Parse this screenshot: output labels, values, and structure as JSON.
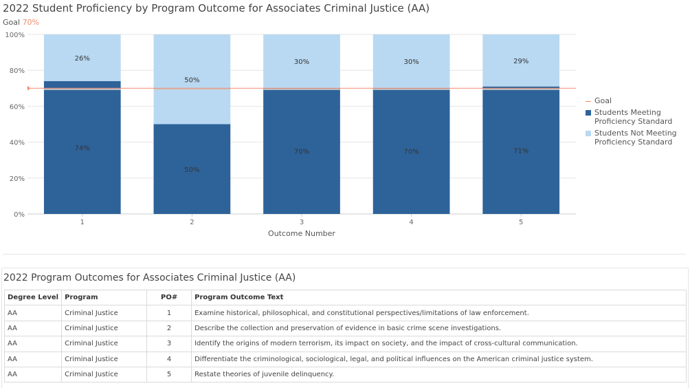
{
  "chart_title": "2022 Student Proficiency by Program Outcome for Associates Criminal Justice (AA)",
  "goal_label": {
    "label": "Goal",
    "value": "70%"
  },
  "chart_data": {
    "type": "bar",
    "stacked": true,
    "categories": [
      "1",
      "2",
      "3",
      "4",
      "5"
    ],
    "xlabel": "Outcome Number",
    "ylim": [
      0,
      100
    ],
    "yticks": [
      "0%",
      "20%",
      "40%",
      "60%",
      "80%",
      "100%"
    ],
    "goal": 70,
    "series": [
      {
        "name": "Students Meeting Proficiency Standard",
        "values": [
          74,
          50,
          70,
          70,
          71
        ],
        "labels": [
          "74%",
          "50%",
          "70%",
          "70%",
          "71%"
        ],
        "color": "#2e6399"
      },
      {
        "name": "Students Not Meeting Proficiency Standard",
        "values": [
          26,
          50,
          30,
          30,
          29
        ],
        "labels": [
          "26%",
          "50%",
          "30%",
          "30%",
          "29%"
        ],
        "color": "#b9d9f2"
      }
    ],
    "goal_color": "#f0896b",
    "grid": true,
    "legend_position": "right"
  },
  "legend": {
    "goal": "Goal",
    "meeting": "Students Meeting Proficiency Standard",
    "not_meeting": "Students Not Meeting Proficiency Standard"
  },
  "table": {
    "title": "2022 Program Outcomes for Associates Criminal Justice (AA)",
    "headers": [
      "Degree Level",
      "Program",
      "PO#",
      "Program Outcome Text"
    ],
    "rows": [
      [
        "AA",
        "Criminal Justice",
        "1",
        "Examine historical, philosophical, and constitutional perspectives/limitations of law enforcement."
      ],
      [
        "AA",
        "Criminal Justice",
        "2",
        "Describe the collection and preservation of evidence in basic crime scene investigations."
      ],
      [
        "AA",
        "Criminal Justice",
        "3",
        "Identify the origins of modern terrorism, its impact on society, and the impact of cross-cultural communication."
      ],
      [
        "AA",
        "Criminal Justice",
        "4",
        "Differentiate the criminological, sociological, legal, and political influences on the American criminal justice system."
      ],
      [
        "AA",
        "Criminal Justice",
        "5",
        "Restate theories of juvenile delinquency."
      ]
    ]
  }
}
